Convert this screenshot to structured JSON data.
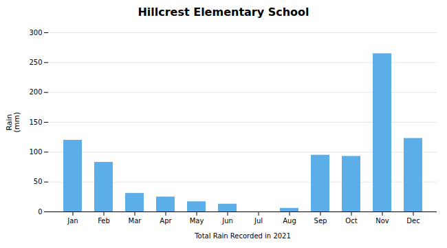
{
  "chart_data": {
    "type": "bar",
    "title": "Hillcrest Elementary School",
    "xlabel": "Total Rain Recorded in 2021",
    "ylabel": "Rain\n(mm)",
    "categories": [
      "Jan",
      "Feb",
      "Mar",
      "Apr",
      "May",
      "Jun",
      "Jul",
      "Aug",
      "Sep",
      "Oct",
      "Nov",
      "Dec"
    ],
    "values": [
      120,
      83,
      31,
      25,
      17,
      13,
      0,
      6,
      95,
      93,
      265,
      123
    ],
    "color": "#5baee8",
    "ylim": [
      0,
      300
    ],
    "yticks": [
      0,
      50,
      100,
      150,
      200,
      250,
      300
    ],
    "grid": true
  }
}
